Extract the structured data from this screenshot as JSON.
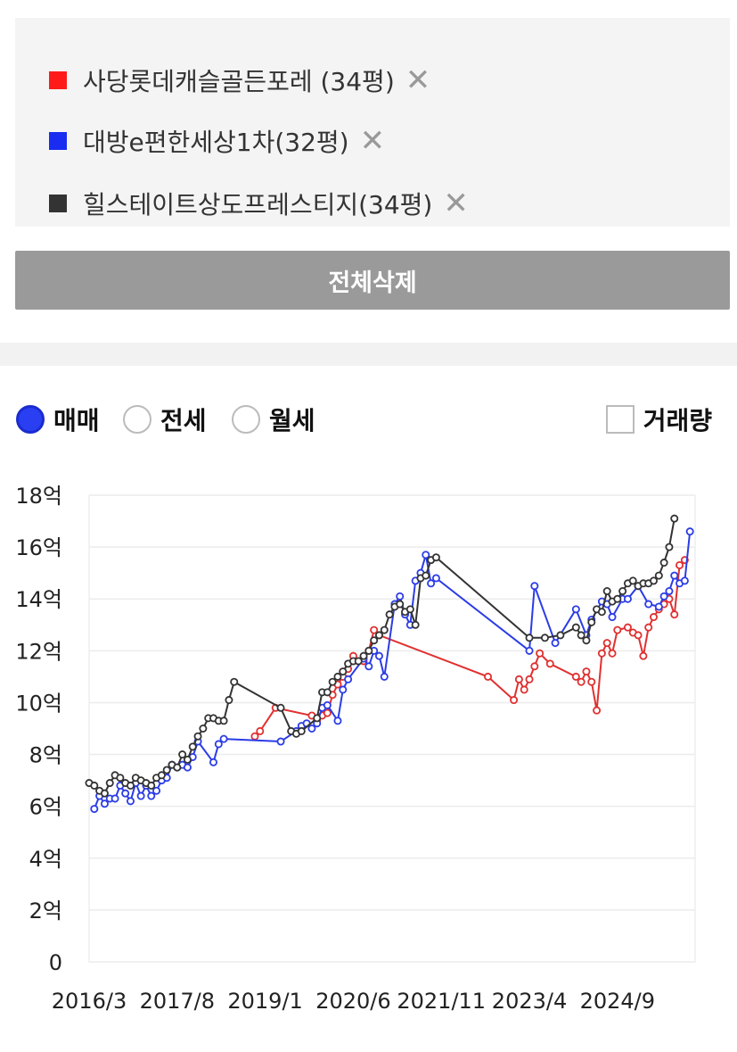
{
  "compare_list": [
    {
      "name": "사당롯데캐슬골든포레 (34평)",
      "color": "#ff1a1a",
      "remove": "✕"
    },
    {
      "name": "대방e편한세상1차(32평)",
      "color": "#1a2cf0",
      "remove": "✕"
    },
    {
      "name": "힐스테이트상도프레스티지(34평)",
      "color": "#333333",
      "remove": "✕"
    }
  ],
  "delete_all_label": "전체삭제",
  "trade_options": [
    {
      "label": "매매",
      "selected": true
    },
    {
      "label": "전세",
      "selected": false
    },
    {
      "label": "월세",
      "selected": false
    }
  ],
  "volume_toggle": {
    "label": "거래량",
    "checked": false
  },
  "chart_data": {
    "type": "line",
    "title": "",
    "xlabel": "",
    "ylabel": "",
    "x_ticks": [
      "2016/3",
      "2017/8",
      "2019/1",
      "2020/6",
      "2021/11",
      "2023/4",
      "2024/9"
    ],
    "y_ticks": [
      "0",
      "2억",
      "4억",
      "6억",
      "8억",
      "10억",
      "12억",
      "14억",
      "16억",
      "18억"
    ],
    "ylim": [
      0,
      18
    ],
    "xlim": [
      "2016/3",
      "2025/12"
    ],
    "unit": "억",
    "grid": true,
    "series": [
      {
        "color": "#e03030",
        "points": [
          [
            "2018/11",
            8.7
          ],
          [
            "2018/12",
            8.9
          ],
          [
            "2019/3",
            9.8
          ],
          [
            "2019/10",
            9.5
          ],
          [
            "2019/11",
            9.3
          ],
          [
            "2019/12",
            9.5
          ],
          [
            "2020/1",
            9.6
          ],
          [
            "2020/2",
            10.3
          ],
          [
            "2020/3",
            10.7
          ],
          [
            "2020/4",
            11.0
          ],
          [
            "2020/5",
            11.3
          ],
          [
            "2020/6",
            11.8
          ],
          [
            "2020/7",
            11.6
          ],
          [
            "2020/8",
            11.6
          ],
          [
            "2020/9",
            12.0
          ],
          [
            "2020/10",
            12.8
          ],
          [
            "2020/11",
            12.6
          ],
          [
            "2022/8",
            11.0
          ],
          [
            "2023/1",
            10.1
          ],
          [
            "2023/2",
            10.9
          ],
          [
            "2023/3",
            10.5
          ],
          [
            "2023/4",
            10.9
          ],
          [
            "2023/5",
            11.4
          ],
          [
            "2023/6",
            11.9
          ],
          [
            "2023/8",
            11.5
          ],
          [
            "2024/1",
            11.0
          ],
          [
            "2024/2",
            10.8
          ],
          [
            "2024/3",
            11.2
          ],
          [
            "2024/4",
            10.8
          ],
          [
            "2024/5",
            9.7
          ],
          [
            "2024/6",
            11.9
          ],
          [
            "2024/7",
            12.3
          ],
          [
            "2024/8",
            11.9
          ],
          [
            "2024/9",
            12.8
          ],
          [
            "2024/11",
            12.9
          ],
          [
            "2024/12",
            12.7
          ],
          [
            "2025/1",
            12.6
          ],
          [
            "2025/2",
            11.8
          ],
          [
            "2025/3",
            12.9
          ],
          [
            "2025/4",
            13.3
          ],
          [
            "2025/5",
            13.6
          ],
          [
            "2025/6",
            13.8
          ],
          [
            "2025/7",
            14.0
          ],
          [
            "2025/8",
            13.4
          ],
          [
            "2025/9",
            15.3
          ],
          [
            "2025/10",
            15.5
          ]
        ]
      },
      {
        "color": "#2b3ce6",
        "points": [
          [
            "2016/4",
            5.9
          ],
          [
            "2016/5",
            6.4
          ],
          [
            "2016/6",
            6.1
          ],
          [
            "2016/7",
            6.3
          ],
          [
            "2016/8",
            6.3
          ],
          [
            "2016/9",
            6.8
          ],
          [
            "2016/10",
            6.5
          ],
          [
            "2016/11",
            6.2
          ],
          [
            "2016/12",
            6.9
          ],
          [
            "2017/1",
            6.4
          ],
          [
            "2017/2",
            6.8
          ],
          [
            "2017/3",
            6.4
          ],
          [
            "2017/4",
            6.6
          ],
          [
            "2017/5",
            7.0
          ],
          [
            "2017/6",
            7.1
          ],
          [
            "2017/7",
            7.6
          ],
          [
            "2017/8",
            7.5
          ],
          [
            "2017/9",
            7.6
          ],
          [
            "2017/10",
            7.5
          ],
          [
            "2017/11",
            7.9
          ],
          [
            "2017/12",
            8.5
          ],
          [
            "2018/3",
            7.7
          ],
          [
            "2018/4",
            8.4
          ],
          [
            "2018/5",
            8.6
          ],
          [
            "2019/4",
            8.5
          ],
          [
            "2019/7",
            8.9
          ],
          [
            "2019/8",
            9.1
          ],
          [
            "2019/9",
            9.2
          ],
          [
            "2019/10",
            9.0
          ],
          [
            "2019/11",
            9.2
          ],
          [
            "2019/12",
            9.8
          ],
          [
            "2020/1",
            9.9
          ],
          [
            "2020/3",
            9.3
          ],
          [
            "2020/4",
            10.5
          ],
          [
            "2020/5",
            10.9
          ],
          [
            "2020/8",
            11.7
          ],
          [
            "2020/9",
            11.4
          ],
          [
            "2020/10",
            12.0
          ],
          [
            "2020/11",
            11.8
          ],
          [
            "2020/12",
            11.0
          ],
          [
            "2021/2",
            13.8
          ],
          [
            "2021/3",
            14.1
          ],
          [
            "2021/4",
            13.4
          ],
          [
            "2021/5",
            13.0
          ],
          [
            "2021/6",
            14.7
          ],
          [
            "2021/7",
            15.0
          ],
          [
            "2021/8",
            15.7
          ],
          [
            "2021/9",
            14.6
          ],
          [
            "2021/10",
            14.8
          ],
          [
            "2023/4",
            12.0
          ],
          [
            "2023/5",
            14.5
          ],
          [
            "2023/9",
            12.3
          ],
          [
            "2024/1",
            13.6
          ],
          [
            "2024/3",
            12.6
          ],
          [
            "2024/4",
            13.2
          ],
          [
            "2024/6",
            13.9
          ],
          [
            "2024/7",
            13.8
          ],
          [
            "2024/8",
            13.3
          ],
          [
            "2024/10",
            14.0
          ],
          [
            "2024/11",
            14.0
          ],
          [
            "2025/1",
            14.5
          ],
          [
            "2025/3",
            13.8
          ],
          [
            "2025/5",
            13.7
          ],
          [
            "2025/6",
            14.1
          ],
          [
            "2025/7",
            14.3
          ],
          [
            "2025/8",
            14.9
          ],
          [
            "2025/9",
            14.6
          ],
          [
            "2025/10",
            14.7
          ],
          [
            "2025/11",
            16.6
          ]
        ]
      },
      {
        "color": "#333333",
        "points": [
          [
            "2016/3",
            6.9
          ],
          [
            "2016/4",
            6.8
          ],
          [
            "2016/5",
            6.6
          ],
          [
            "2016/6",
            6.5
          ],
          [
            "2016/7",
            6.9
          ],
          [
            "2016/8",
            7.2
          ],
          [
            "2016/9",
            7.1
          ],
          [
            "2016/10",
            6.9
          ],
          [
            "2016/11",
            6.8
          ],
          [
            "2016/12",
            7.1
          ],
          [
            "2017/1",
            7.0
          ],
          [
            "2017/2",
            6.9
          ],
          [
            "2017/3",
            6.8
          ],
          [
            "2017/4",
            7.1
          ],
          [
            "2017/5",
            7.2
          ],
          [
            "2017/6",
            7.4
          ],
          [
            "2017/7",
            7.6
          ],
          [
            "2017/8",
            7.5
          ],
          [
            "2017/9",
            8.0
          ],
          [
            "2017/10",
            7.8
          ],
          [
            "2017/11",
            8.3
          ],
          [
            "2017/12",
            8.7
          ],
          [
            "2018/1",
            9.0
          ],
          [
            "2018/2",
            9.4
          ],
          [
            "2018/3",
            9.4
          ],
          [
            "2018/4",
            9.3
          ],
          [
            "2018/5",
            9.3
          ],
          [
            "2018/6",
            10.1
          ],
          [
            "2018/7",
            10.8
          ],
          [
            "2019/4",
            9.8
          ],
          [
            "2019/6",
            8.9
          ],
          [
            "2019/7",
            8.8
          ],
          [
            "2019/8",
            8.9
          ],
          [
            "2019/11",
            9.4
          ],
          [
            "2019/12",
            10.4
          ],
          [
            "2020/1",
            10.4
          ],
          [
            "2020/2",
            10.8
          ],
          [
            "2020/3",
            11.0
          ],
          [
            "2020/4",
            11.2
          ],
          [
            "2020/5",
            11.5
          ],
          [
            "2020/6",
            11.6
          ],
          [
            "2020/7",
            11.6
          ],
          [
            "2020/8",
            11.8
          ],
          [
            "2020/9",
            12.0
          ],
          [
            "2020/10",
            12.4
          ],
          [
            "2020/11",
            12.6
          ],
          [
            "2020/12",
            12.8
          ],
          [
            "2021/1",
            13.4
          ],
          [
            "2021/2",
            13.7
          ],
          [
            "2021/3",
            13.8
          ],
          [
            "2021/4",
            13.5
          ],
          [
            "2021/5",
            13.6
          ],
          [
            "2021/6",
            13.0
          ],
          [
            "2021/7",
            14.8
          ],
          [
            "2021/8",
            14.9
          ],
          [
            "2021/9",
            15.5
          ],
          [
            "2021/10",
            15.6
          ],
          [
            "2023/4",
            12.5
          ],
          [
            "2023/7",
            12.5
          ],
          [
            "2023/10",
            12.6
          ],
          [
            "2024/1",
            12.9
          ],
          [
            "2024/2",
            12.6
          ],
          [
            "2024/3",
            12.4
          ],
          [
            "2024/4",
            13.1
          ],
          [
            "2024/5",
            13.6
          ],
          [
            "2024/6",
            13.5
          ],
          [
            "2024/7",
            14.3
          ],
          [
            "2024/8",
            13.9
          ],
          [
            "2024/9",
            14.0
          ],
          [
            "2024/10",
            14.3
          ],
          [
            "2024/11",
            14.6
          ],
          [
            "2024/12",
            14.7
          ],
          [
            "2025/1",
            14.5
          ],
          [
            "2025/2",
            14.6
          ],
          [
            "2025/3",
            14.6
          ],
          [
            "2025/4",
            14.7
          ],
          [
            "2025/5",
            14.9
          ],
          [
            "2025/6",
            15.4
          ],
          [
            "2025/7",
            16.0
          ],
          [
            "2025/8",
            17.1
          ]
        ]
      }
    ]
  }
}
